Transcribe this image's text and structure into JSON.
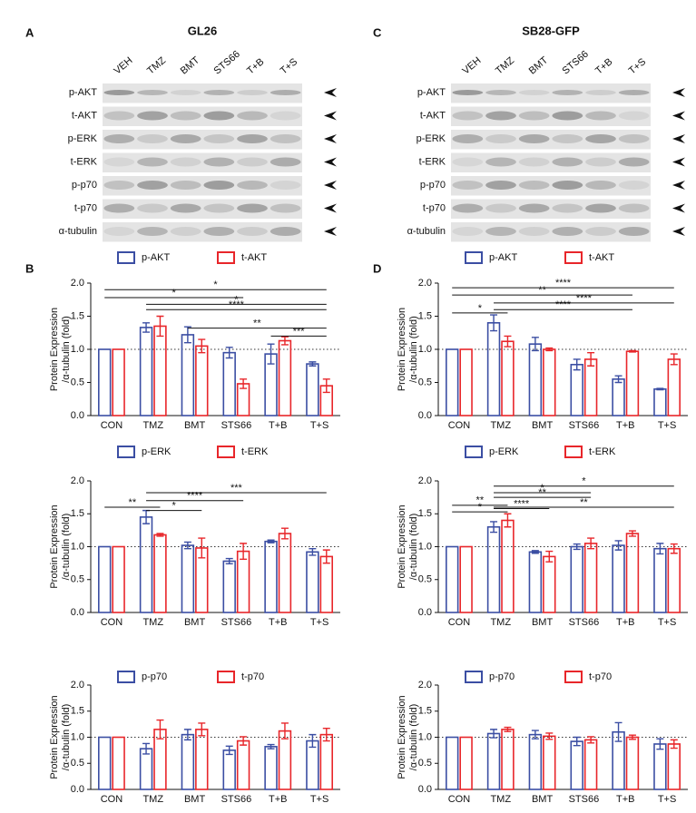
{
  "blots": [
    {
      "letter": "A",
      "title": "GL26",
      "lanes": [
        "VEH",
        "TMZ",
        "BMT",
        "STS66",
        "T+B",
        "T+S"
      ],
      "rows": [
        "p-AKT",
        "t-AKT",
        "p-ERK",
        "t-ERK",
        "p-p70",
        "t-p70",
        "α-tubulin"
      ]
    },
    {
      "letter": "C",
      "title": "SB28-GFP",
      "lanes": [
        "VEH",
        "TMZ",
        "BMT",
        "STS66",
        "T+B",
        "T+S"
      ],
      "rows": [
        "p-AKT",
        "t-AKT",
        "p-ERK",
        "t-ERK",
        "p-p70",
        "t-p70",
        "α-tubulin"
      ]
    }
  ],
  "chart_data": [
    {
      "type": "bar",
      "panel_label": "B",
      "y_label": [
        "Protein Expression",
        "/α-tubulin (fold)"
      ],
      "categories": [
        "CON",
        "TMZ",
        "BMT",
        "STS66",
        "T+B",
        "T+S"
      ],
      "series": [
        {
          "name": "p-AKT",
          "color": "#3b4ea3",
          "values": [
            1,
            1.33,
            1.22,
            0.95,
            0.93,
            0.78
          ],
          "errors": [
            0,
            0.07,
            0.12,
            0.08,
            0.15,
            0.03
          ]
        },
        {
          "name": "t-AKT",
          "color": "#e8262a",
          "values": [
            1,
            1.35,
            1.05,
            0.48,
            1.13,
            0.45
          ],
          "errors": [
            0,
            0.15,
            0.1,
            0.07,
            0.06,
            0.1
          ]
        }
      ],
      "ylim": [
        0,
        2
      ],
      "yticks": [
        {
          "value": 0,
          "label": "0.0"
        },
        0.5,
        {
          "value": 1,
          "label": "1.0"
        },
        1.5,
        {
          "value": 2,
          "label": "2.0"
        }
      ],
      "ref_line": 1,
      "brackets": [
        {
          "from": 0,
          "to": 5,
          "y": 1.9,
          "label": "*"
        },
        {
          "from": 0,
          "to": 3,
          "y": 1.78,
          "label": "*"
        },
        {
          "from": 1,
          "to": 5,
          "y": 1.68,
          "label": "*"
        },
        {
          "from": 1,
          "to": 5,
          "y": 1.6,
          "label": "****"
        },
        {
          "from": 2,
          "to": 5,
          "y": 1.32,
          "label": "**"
        },
        {
          "from": 4,
          "to": 5,
          "y": 1.2,
          "label": "***"
        }
      ]
    },
    {
      "type": "bar",
      "y_label": [
        "Protein Expression",
        "/α-tubulin (fold)"
      ],
      "categories": [
        "CON",
        "TMZ",
        "BMT",
        "STS66",
        "T+B",
        "T+S"
      ],
      "series": [
        {
          "name": "p-ERK",
          "color": "#3b4ea3",
          "values": [
            1,
            1.45,
            1.02,
            0.78,
            1.08,
            0.92
          ],
          "errors": [
            0,
            0.1,
            0.05,
            0.04,
            0.02,
            0.05
          ]
        },
        {
          "name": "t-ERK",
          "color": "#e8262a",
          "values": [
            1,
            1.18,
            0.98,
            0.93,
            1.2,
            0.85
          ],
          "errors": [
            0,
            0.02,
            0.15,
            0.12,
            0.08,
            0.1
          ]
        }
      ],
      "ylim": [
        0,
        2
      ],
      "yticks": [
        {
          "value": 0,
          "label": "0.0"
        },
        0.5,
        {
          "value": 1,
          "label": "1.0"
        },
        1.5,
        {
          "value": 2,
          "label": "2.0"
        }
      ],
      "ref_line": 1,
      "brackets": [
        {
          "from": 0,
          "to": 1,
          "y": 1.6,
          "label": "**"
        },
        {
          "from": 1,
          "to": 2,
          "y": 1.55,
          "label": "*"
        },
        {
          "from": 1,
          "to": 3,
          "y": 1.7,
          "label": "****"
        },
        {
          "from": 1,
          "to": 5,
          "y": 1.82,
          "label": "***"
        }
      ]
    },
    {
      "type": "bar",
      "y_label": [
        "Protein Expression",
        "/α-tubulin (fold)"
      ],
      "categories": [
        "CON",
        "TMZ",
        "BMT",
        "STS66",
        "T+B",
        "T+S"
      ],
      "series": [
        {
          "name": "p-p70",
          "color": "#3b4ea3",
          "values": [
            1,
            0.78,
            1.05,
            0.75,
            0.82,
            0.93
          ],
          "errors": [
            0,
            0.1,
            0.1,
            0.08,
            0.04,
            0.12
          ]
        },
        {
          "name": "t-p70",
          "color": "#e8262a",
          "values": [
            1,
            1.15,
            1.15,
            0.93,
            1.12,
            1.05
          ],
          "errors": [
            0,
            0.18,
            0.12,
            0.08,
            0.15,
            0.12
          ]
        }
      ],
      "ylim": [
        0,
        2
      ],
      "yticks": [
        {
          "value": 0,
          "label": "0.0"
        },
        0.5,
        {
          "value": 1,
          "label": "1.0"
        },
        1.5,
        {
          "value": 2,
          "label": "2.0"
        }
      ],
      "ref_line": 1,
      "brackets": []
    },
    {
      "type": "bar",
      "panel_label": "D",
      "y_label": [
        "Protein Expression",
        "/α-tubulin (fold)"
      ],
      "categories": [
        "CON",
        "TMZ",
        "BMT",
        "STS66",
        "T+B",
        "T+S"
      ],
      "series": [
        {
          "name": "p-AKT",
          "color": "#3b4ea3",
          "values": [
            1,
            1.4,
            1.08,
            0.77,
            0.55,
            0.4
          ],
          "errors": [
            0,
            0.12,
            0.1,
            0.08,
            0.05,
            0.01
          ]
        },
        {
          "name": "t-AKT",
          "color": "#e8262a",
          "values": [
            1,
            1.12,
            1.0,
            0.85,
            0.97,
            0.85
          ],
          "errors": [
            0,
            0.08,
            0.02,
            0.1,
            0.01,
            0.08
          ]
        }
      ],
      "ylim": [
        0,
        2
      ],
      "yticks": [
        {
          "value": 0,
          "label": "0.0"
        },
        0.5,
        {
          "value": 1,
          "label": "1.0"
        },
        1.5,
        {
          "value": 2,
          "label": "2.0"
        }
      ],
      "ref_line": 1,
      "brackets": [
        {
          "from": 0,
          "to": 5,
          "y": 1.93,
          "label": "****"
        },
        {
          "from": 0,
          "to": 4,
          "y": 1.82,
          "label": "**"
        },
        {
          "from": 1,
          "to": 5,
          "y": 1.7,
          "label": "****"
        },
        {
          "from": 1,
          "to": 4,
          "y": 1.6,
          "label": "****"
        },
        {
          "from": 0,
          "to": 1,
          "y": 1.55,
          "label": "*"
        }
      ]
    },
    {
      "type": "bar",
      "y_label": [
        "Protein Expression",
        "/α-tubulin (fold)"
      ],
      "categories": [
        "CON",
        "TMZ",
        "BMT",
        "STS66",
        "T+B",
        "T+S"
      ],
      "series": [
        {
          "name": "p-ERK",
          "color": "#3b4ea3",
          "values": [
            1,
            1.3,
            0.92,
            1.0,
            1.02,
            0.97
          ],
          "errors": [
            0,
            0.08,
            0.02,
            0.04,
            0.07,
            0.08
          ]
        },
        {
          "name": "t-ERK",
          "color": "#e8262a",
          "values": [
            1,
            1.4,
            0.85,
            1.05,
            1.2,
            0.97
          ],
          "errors": [
            0,
            0.1,
            0.08,
            0.08,
            0.04,
            0.07
          ]
        }
      ],
      "ylim": [
        0,
        2
      ],
      "yticks": [
        {
          "value": 0,
          "label": "0.0"
        },
        0.5,
        {
          "value": 1,
          "label": "1.0"
        },
        1.5,
        {
          "value": 2,
          "label": "2.0"
        }
      ],
      "ref_line": 1,
      "brackets": [
        {
          "from": 0,
          "to": 1,
          "y": 1.53,
          "label": "*"
        },
        {
          "from": 0,
          "to": 1,
          "y": 1.63,
          "label": "**"
        },
        {
          "from": 1,
          "to": 2,
          "y": 1.58,
          "label": "****"
        },
        {
          "from": 1,
          "to": 3,
          "y": 1.75,
          "label": "**"
        },
        {
          "from": 1,
          "to": 3,
          "y": 1.82,
          "label": "*"
        },
        {
          "from": 1,
          "to": 5,
          "y": 1.92,
          "label": "*"
        },
        {
          "from": 1,
          "to": 5,
          "y": 1.6,
          "label": "**"
        }
      ]
    },
    {
      "type": "bar",
      "y_label": [
        "Protein Expression",
        "/α-tubulin (fold)"
      ],
      "categories": [
        "CON",
        "TMZ",
        "BMT",
        "STS66",
        "T+B",
        "T+S"
      ],
      "series": [
        {
          "name": "p-p70",
          "color": "#3b4ea3",
          "values": [
            1,
            1.07,
            1.05,
            0.92,
            1.1,
            0.87
          ],
          "errors": [
            0,
            0.08,
            0.08,
            0.08,
            0.18,
            0.1
          ]
        },
        {
          "name": "t-p70",
          "color": "#e8262a",
          "values": [
            1,
            1.15,
            1.02,
            0.95,
            1.0,
            0.87
          ],
          "errors": [
            0,
            0.04,
            0.06,
            0.06,
            0.04,
            0.08
          ]
        }
      ],
      "ylim": [
        0,
        2
      ],
      "yticks": [
        {
          "value": 0,
          "label": "0.0"
        },
        0.5,
        {
          "value": 1,
          "label": "1.0"
        },
        1.5,
        {
          "value": 2,
          "label": "2.0"
        }
      ],
      "ref_line": 1,
      "brackets": []
    }
  ]
}
